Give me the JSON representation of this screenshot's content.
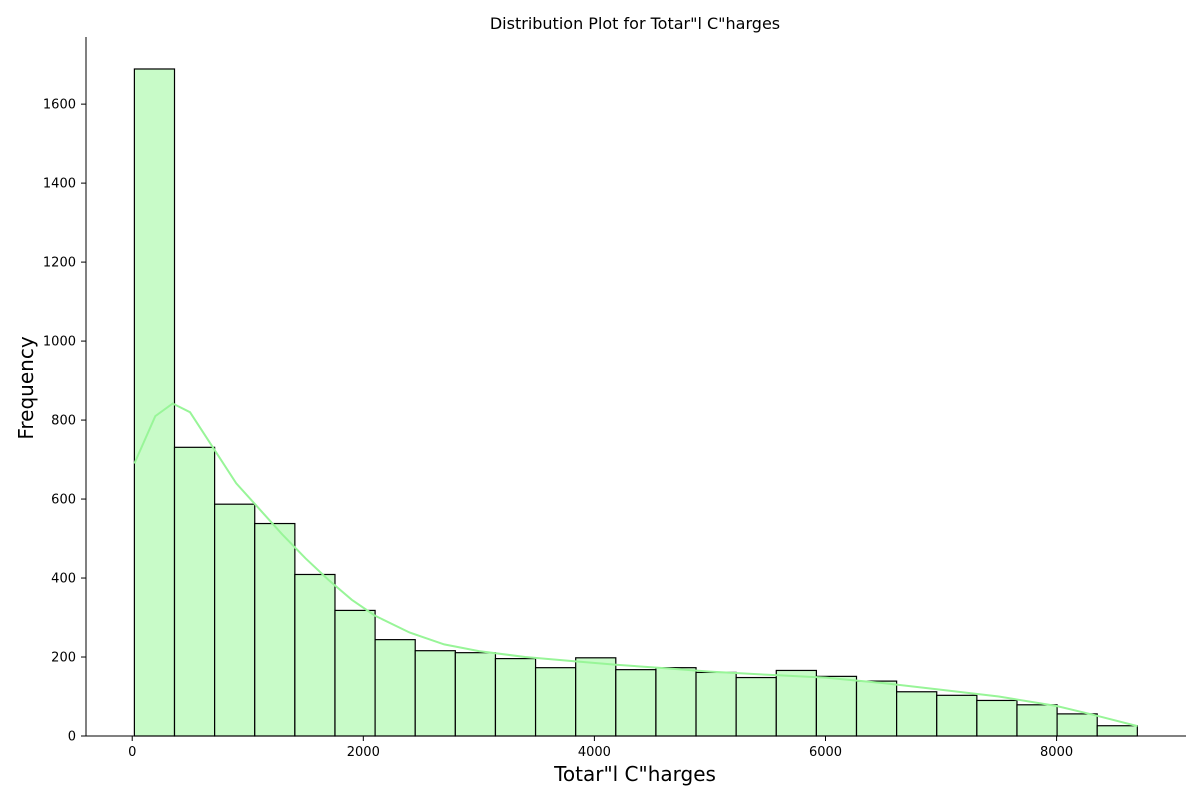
{
  "chart_data": {
    "type": "bar",
    "title": "Distribution Plot for Totar\"l C\"harges",
    "xlabel": "Totar\"l C\"harges",
    "ylabel": "Frequency",
    "xlim": [
      -400,
      9120
    ],
    "ylim": [
      0,
      1770
    ],
    "xticks": [
      0,
      2000,
      4000,
      6000,
      8000
    ],
    "yticks": [
      0,
      200,
      400,
      600,
      800,
      1000,
      1200,
      1400,
      1600
    ],
    "grid": false,
    "bar_color": "#c8fbc8",
    "edge_color": "#000000",
    "kde_color": "#98f598",
    "bins": {
      "start": 18.8,
      "width": 347.2,
      "values": [
        1689,
        731,
        587,
        538,
        409,
        318,
        244,
        216,
        211,
        196,
        173,
        198,
        168,
        173,
        161,
        148,
        166,
        151,
        139,
        112,
        103,
        90,
        79,
        56,
        26
      ]
    },
    "kde": {
      "x": [
        18.8,
        200,
        350,
        500,
        700,
        900,
        1100,
        1300,
        1500,
        1700,
        1900,
        2100,
        2400,
        2700,
        3000,
        3400,
        3800,
        4200,
        4600,
        5000,
        5500,
        6000,
        6500,
        7000,
        7500,
        8000,
        8300,
        8700
      ],
      "y": [
        690,
        810,
        842,
        820,
        730,
        640,
        575,
        510,
        450,
        395,
        345,
        305,
        262,
        232,
        215,
        200,
        190,
        180,
        172,
        163,
        155,
        148,
        134,
        117,
        100,
        76,
        55,
        25
      ]
    }
  }
}
